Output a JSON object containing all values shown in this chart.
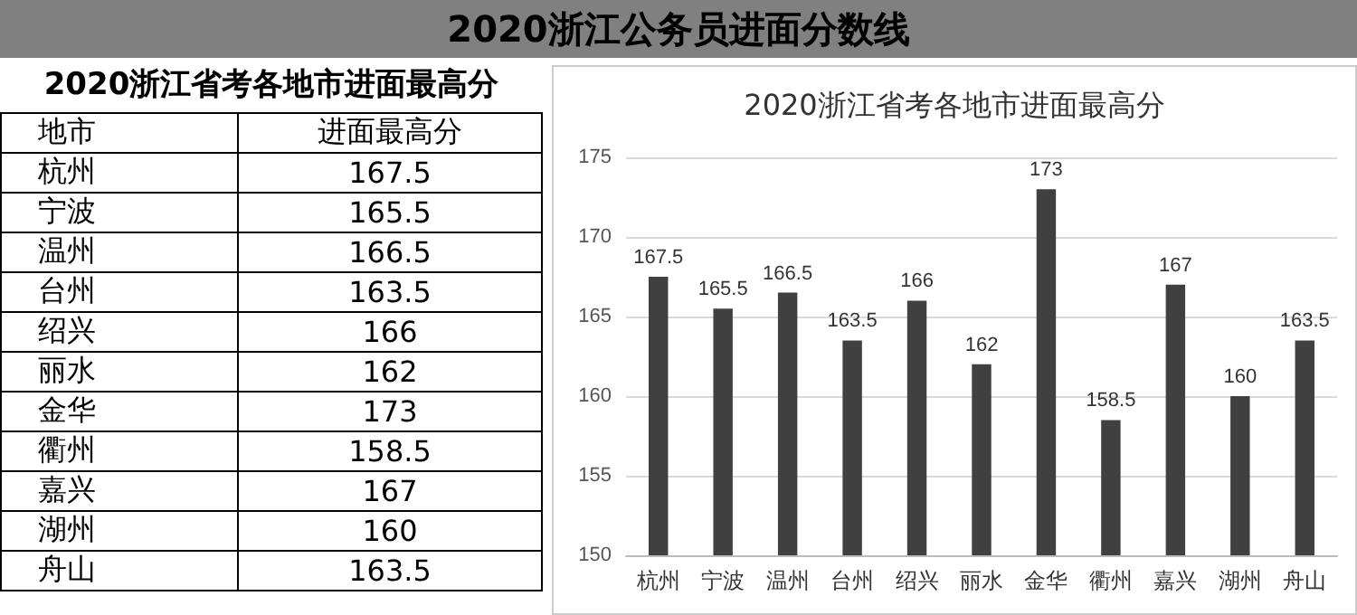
{
  "chart_data": [
    {
      "type": "other",
      "title": "2020浙江公务员进面分数线",
      "subtitle": "2020浙江省考各地市进面最高分",
      "annotations": [
        "地市",
        "进面最高分"
      ],
      "categories": [
        "杭州",
        "宁波",
        "温州",
        "台州",
        "绍兴",
        "丽水",
        "金华",
        "衢州",
        "嘉兴",
        "湖州",
        "舟山"
      ],
      "value_labels": [
        "167.5",
        "165.5",
        "166.5",
        "163.5",
        "166",
        "162",
        "173",
        "158.5",
        "167",
        "160",
        "163.5"
      ]
    },
    {
      "type": "bar",
      "title": "2020浙江省考各地市进面最高分",
      "categories": [
        "杭州",
        "宁波",
        "温州",
        "台州",
        "绍兴",
        "丽水",
        "金华",
        "衢州",
        "嘉兴",
        "湖州",
        "舟山"
      ],
      "values": [
        167.5,
        165.5,
        166.5,
        163.5,
        166,
        162,
        173,
        158.5,
        167,
        160,
        163.5
      ],
      "color": "#404040",
      "ylim": [
        150,
        175
      ],
      "yticks": [
        150,
        155,
        160,
        165,
        170,
        175
      ],
      "grid": "y",
      "data_labels": true
    }
  ]
}
